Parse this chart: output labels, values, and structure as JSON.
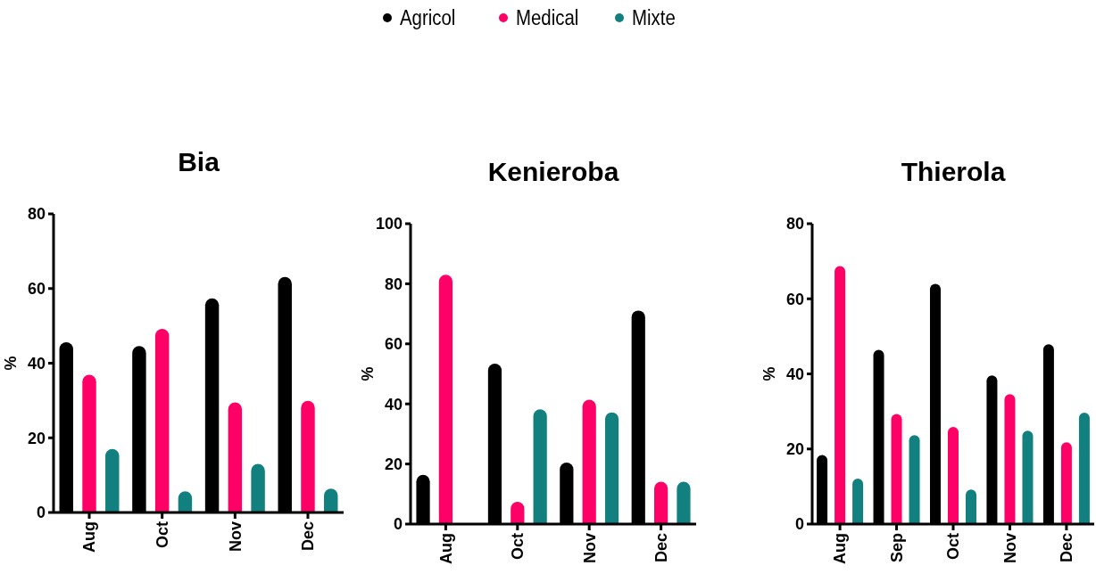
{
  "chart_data": [
    {
      "type": "bar",
      "title": "Bia",
      "ylabel": "%",
      "categories": [
        "Aug",
        "Oct",
        "Nov",
        "Dec"
      ],
      "ylim": [
        0,
        80
      ],
      "yticks": [
        0,
        20,
        40,
        60,
        80
      ],
      "legend": "top",
      "marker": "circle",
      "series": [
        {
          "name": "Agricol",
          "color": "#000000",
          "values": [
            45.6,
            44.6,
            57.4,
            63.1
          ]
        },
        {
          "name": "Medical",
          "color": "#ff0066",
          "values": [
            36.9,
            49.2,
            29.5,
            29.9
          ]
        },
        {
          "name": "Mixte",
          "color": "#138080",
          "values": [
            17,
            5.7,
            13,
            6.4
          ]
        }
      ]
    },
    {
      "type": "bar",
      "title": "Kenieroba",
      "ylabel": "%",
      "categories": [
        "Aug",
        "Oct",
        "Nov",
        "Dec"
      ],
      "ylim": [
        0,
        100
      ],
      "yticks": [
        0,
        20,
        40,
        60,
        80,
        100
      ],
      "marker": "circle",
      "series": [
        {
          "name": "Agricol",
          "color": "#000000",
          "values": [
            16.4,
            53.4,
            20.5,
            71.1
          ]
        },
        {
          "name": "Medical",
          "color": "#ff0066",
          "values": [
            83,
            7.4,
            41.4,
            14.1
          ]
        },
        {
          "name": "Mixte",
          "color": "#138080",
          "values": [
            0,
            38.2,
            37.2,
            14.1
          ]
        }
      ]
    },
    {
      "type": "bar",
      "title": "Thierola",
      "ylabel": "%",
      "categories": [
        "Aug",
        "Sep",
        "Oct",
        "Nov",
        "Dec"
      ],
      "ylim": [
        0,
        80
      ],
      "yticks": [
        0,
        20,
        40,
        60,
        80
      ],
      "marker": "circle",
      "series": [
        {
          "name": "Agricol",
          "color": "#000000",
          "values": [
            18.4,
            46.4,
            64,
            39.6,
            47.9
          ]
        },
        {
          "name": "Medical",
          "color": "#ff0066",
          "values": [
            68.7,
            29.3,
            25.9,
            34.6,
            21.8
          ]
        },
        {
          "name": "Mixte",
          "color": "#138080",
          "values": [
            12.1,
            23.7,
            9.2,
            24.9,
            29.7
          ]
        }
      ]
    }
  ]
}
